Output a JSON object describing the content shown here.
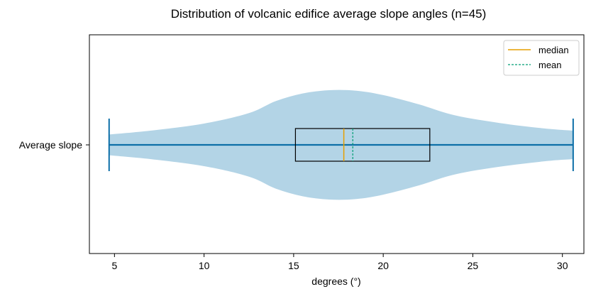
{
  "chart_data": {
    "type": "violin",
    "title": "Distribution of volcanic edifice average slope angles (n=45)",
    "xlabel": "degrees (°)",
    "ylabel": "",
    "category": "Average slope",
    "xlim": [
      3.6,
      31.2
    ],
    "xticks": [
      5,
      10,
      15,
      20,
      25,
      30
    ],
    "min": 4.7,
    "max": 30.6,
    "q1": 15.1,
    "median": 17.8,
    "mean": 18.3,
    "q3": 22.6,
    "density_profile": [
      {
        "x": 4.7,
        "w": 0.19
      },
      {
        "x": 7.0,
        "w": 0.26
      },
      {
        "x": 10.0,
        "w": 0.39
      },
      {
        "x": 12.5,
        "w": 0.58
      },
      {
        "x": 14.0,
        "w": 0.8
      },
      {
        "x": 15.5,
        "w": 0.94
      },
      {
        "x": 17.0,
        "w": 1.0
      },
      {
        "x": 18.5,
        "w": 0.99
      },
      {
        "x": 20.0,
        "w": 0.91
      },
      {
        "x": 22.0,
        "w": 0.74
      },
      {
        "x": 24.0,
        "w": 0.54
      },
      {
        "x": 26.5,
        "w": 0.4
      },
      {
        "x": 29.0,
        "w": 0.3
      },
      {
        "x": 30.6,
        "w": 0.26
      }
    ],
    "legend": {
      "position": "top-right",
      "entries": [
        {
          "label": "median",
          "color": "#e69f00",
          "style": "solid"
        },
        {
          "label": "mean",
          "color": "#009e73",
          "style": "dashed"
        }
      ]
    },
    "colors": {
      "violin_fill": "#b3d4e6",
      "whisker": "#0d6fa8",
      "box": "#000000"
    }
  }
}
